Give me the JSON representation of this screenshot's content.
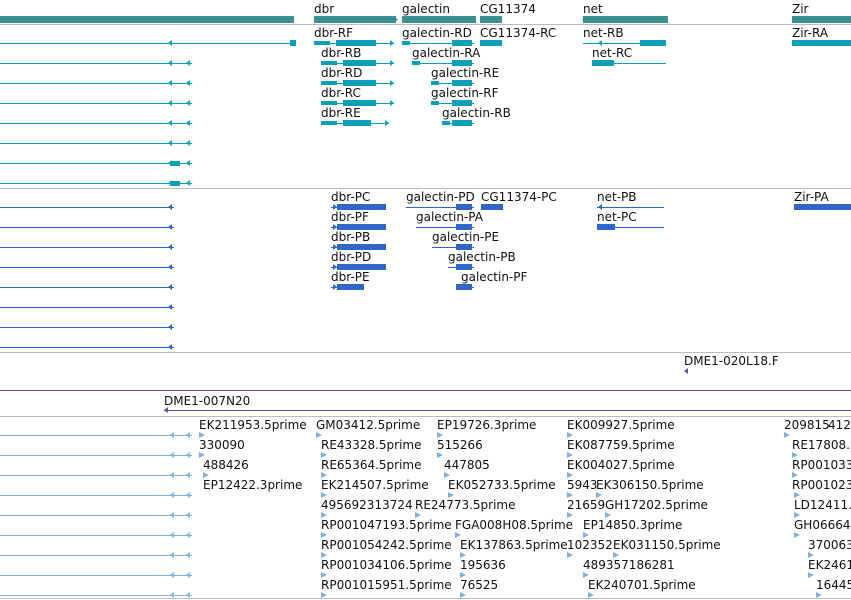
{
  "colors": {
    "gene": "#3b8f8f",
    "rna_release": "#0aa0b8",
    "rna_annot": "#2f66c9",
    "clone": "#6a4aa6",
    "est": "#7fb3dd",
    "separator": "#bdbdbd"
  },
  "gene_track": {
    "labels": [
      "dbr",
      "galectin",
      "CG11374",
      "net",
      "Zir"
    ]
  },
  "transcripts_track_1": {
    "labels": [
      "dbr-RF",
      "galectin-RD",
      "CG11374-RC",
      "net-RB",
      "Zir-RA",
      "dbr-RB",
      "galectin-RA",
      "net-RC",
      "dbr-RD",
      "galectin-RE",
      "dbr-RC",
      "galectin-RF",
      "dbr-RE",
      "galectin-RB"
    ]
  },
  "transcripts_track_2": {
    "labels": [
      "dbr-PC",
      "galectin-PD",
      "CG11374-PC",
      "net-PB",
      "Zir-PA",
      "dbr-PF",
      "galectin-PA",
      "net-PC",
      "dbr-PB",
      "galectin-PE",
      "dbr-PD",
      "galectin-PB",
      "dbr-PE",
      "galectin-PF"
    ]
  },
  "clone_track": {
    "labels": [
      "DME1-020L18.F",
      "DME1-007N20"
    ]
  },
  "est_track": {
    "labels": [
      "EK211953.5prime",
      "GM03412.5prime",
      "EP19726.3prime",
      "EK009927.5prime",
      "209815",
      "412",
      "330090",
      "RE43328.5prime",
      "515266",
      "EK087759.5prime",
      "RE17808.",
      "488426",
      "RE65364.5prime",
      "447805",
      "EK004027.5prime",
      "RP001033",
      "EP12422.3prime",
      "EK214507.5prime",
      "EK052733.5prime",
      "5943",
      "EK306150.5prime",
      "RP001023",
      "495692313724",
      "RE24773.5prime",
      "21659",
      "GH17202.5prime",
      "LD12411.",
      "RP001047193.5prime",
      "FGA008H08.5prime",
      "EP14850.3prime",
      "GH06664",
      "RP001054242.5prime",
      "EK137863.5prime",
      "102352",
      "EK031150.5prime",
      "370063",
      "RP001034106.5prime",
      "195636",
      "489357186281",
      "EK2461",
      "RP001015951.5prime",
      "76525",
      "EK240701.5prime",
      "16445"
    ]
  }
}
